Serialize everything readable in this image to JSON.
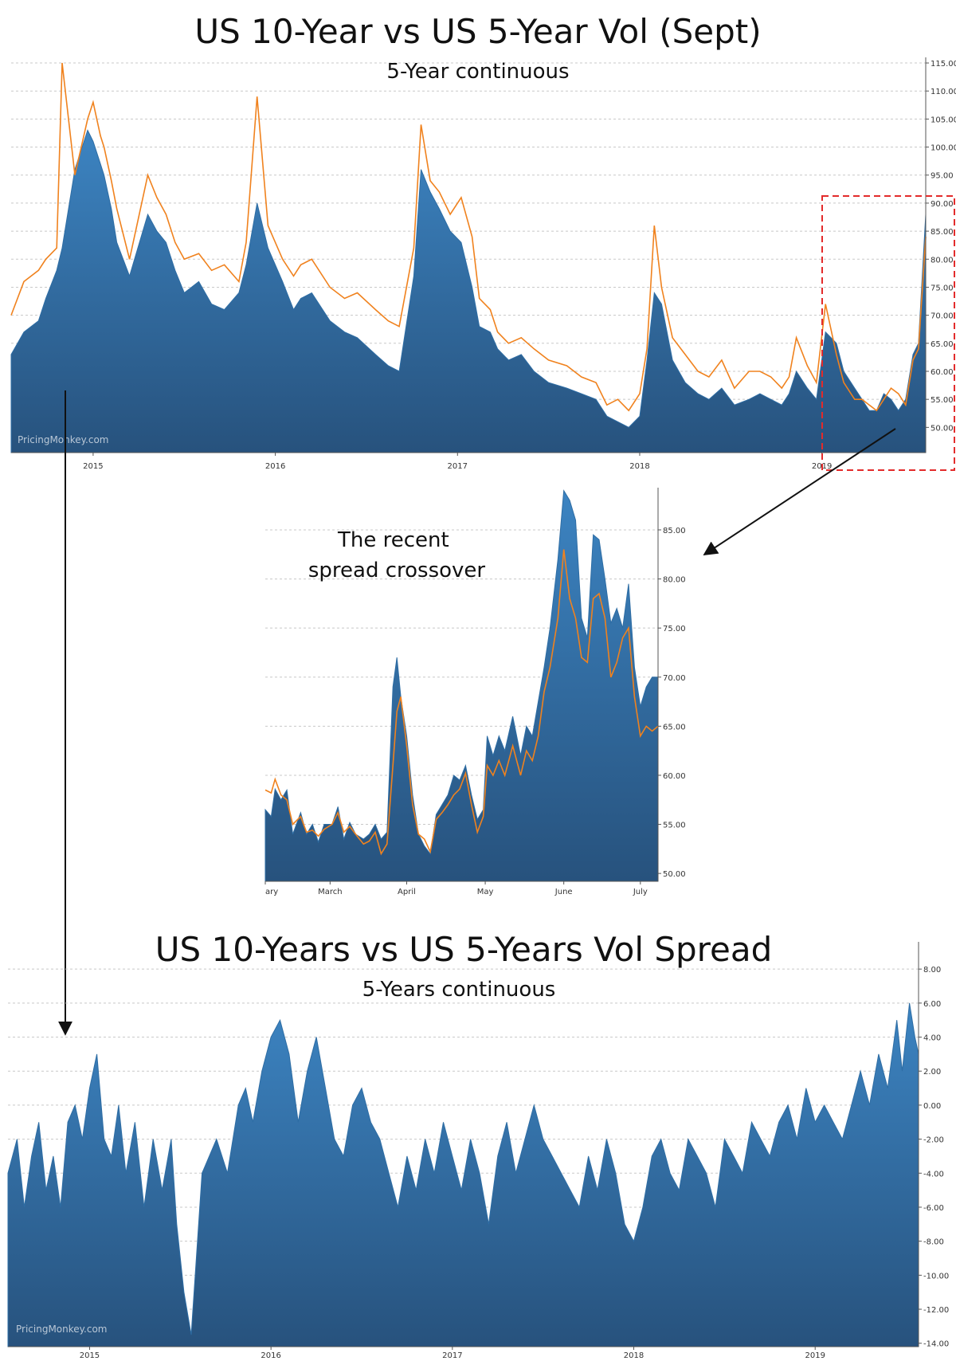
{
  "chart_data": [
    {
      "id": "top",
      "type": "area",
      "title": "US 10-Year vs US 5-Year Vol (Sept)",
      "subtitle": "5-Year continuous",
      "watermark": "PricingMonkey.com",
      "x_tick_labels": [
        "2015",
        "2016",
        "2017",
        "2018",
        "2019"
      ],
      "x_range": [
        2014.55,
        2019.57
      ],
      "x_ticks": [
        2015.0,
        2016.0,
        2017.0,
        2018.0,
        2019.0
      ],
      "ylim": [
        45.5,
        116
      ],
      "y_ticks": [
        50,
        55,
        60,
        65,
        70,
        75,
        80,
        85,
        90,
        95,
        100,
        105,
        110,
        115
      ],
      "y_tick_labels": [
        "50.00",
        "55.00",
        "60.00",
        "65.00",
        "70.00",
        "75.00",
        "80.00",
        "85.00",
        "90.00",
        "95.00",
        "100.00",
        "105.00",
        "110.00",
        "115.00"
      ],
      "grid": true,
      "series": [
        {
          "style": "area",
          "color": "#2e6da4",
          "x": [
            2014.55,
            2014.62,
            2014.7,
            2014.74,
            2014.8,
            2014.83,
            2014.9,
            2014.97,
            2015.0,
            2015.04,
            2015.06,
            2015.1,
            2015.13,
            2015.2,
            2015.3,
            2015.35,
            2015.4,
            2015.45,
            2015.5,
            2015.58,
            2015.65,
            2015.72,
            2015.8,
            2015.84,
            2015.9,
            2015.96,
            2016.04,
            2016.1,
            2016.14,
            2016.2,
            2016.3,
            2016.38,
            2016.45,
            2016.55,
            2016.62,
            2016.68,
            2016.76,
            2016.8,
            2016.85,
            2016.9,
            2016.96,
            2017.02,
            2017.08,
            2017.12,
            2017.18,
            2017.22,
            2017.28,
            2017.35,
            2017.42,
            2017.5,
            2017.6,
            2017.68,
            2017.76,
            2017.82,
            2017.88,
            2017.94,
            2018.0,
            2018.04,
            2018.08,
            2018.12,
            2018.18,
            2018.25,
            2018.32,
            2018.38,
            2018.45,
            2018.52,
            2018.6,
            2018.66,
            2018.72,
            2018.78,
            2018.82,
            2018.86,
            2018.92,
            2018.97,
            2019.02,
            2019.08,
            2019.12,
            2019.18,
            2019.22,
            2019.26,
            2019.3,
            2019.34,
            2019.38,
            2019.42,
            2019.46,
            2019.5,
            2019.53,
            2019.57
          ],
          "values": [
            63,
            67,
            69,
            73,
            78,
            82,
            96,
            103,
            101,
            97,
            95,
            89,
            83,
            77,
            88,
            85,
            83,
            78,
            74,
            76,
            72,
            71,
            74,
            79,
            90,
            82,
            76,
            71,
            73,
            74,
            69,
            67,
            66,
            63,
            61,
            60,
            77,
            96,
            92,
            89,
            85,
            83,
            75,
            68,
            67,
            64,
            62,
            63,
            60,
            58,
            57,
            56,
            55,
            52,
            51,
            50,
            52,
            62,
            74,
            72,
            62,
            58,
            56,
            55,
            57,
            54,
            55,
            56,
            55,
            54,
            56,
            60,
            57,
            55,
            67,
            65,
            60,
            57,
            55,
            53,
            53,
            56,
            55,
            53,
            55,
            63,
            65,
            88
          ]
        },
        {
          "style": "line",
          "color": "#f0821e",
          "x": [
            2014.55,
            2014.62,
            2014.7,
            2014.74,
            2014.8,
            2014.83,
            2014.9,
            2014.97,
            2015.0,
            2015.04,
            2015.06,
            2015.1,
            2015.13,
            2015.2,
            2015.3,
            2015.35,
            2015.4,
            2015.45,
            2015.5,
            2015.58,
            2015.65,
            2015.72,
            2015.8,
            2015.84,
            2015.9,
            2015.96,
            2016.04,
            2016.1,
            2016.14,
            2016.2,
            2016.3,
            2016.38,
            2016.45,
            2016.55,
            2016.62,
            2016.68,
            2016.76,
            2016.8,
            2016.85,
            2016.9,
            2016.96,
            2017.02,
            2017.08,
            2017.12,
            2017.18,
            2017.22,
            2017.28,
            2017.35,
            2017.42,
            2017.5,
            2017.6,
            2017.68,
            2017.76,
            2017.82,
            2017.88,
            2017.94,
            2018.0,
            2018.04,
            2018.08,
            2018.12,
            2018.18,
            2018.25,
            2018.32,
            2018.38,
            2018.45,
            2018.52,
            2018.6,
            2018.66,
            2018.72,
            2018.78,
            2018.82,
            2018.86,
            2018.92,
            2018.97,
            2019.02,
            2019.08,
            2019.12,
            2019.18,
            2019.22,
            2019.26,
            2019.3,
            2019.34,
            2019.38,
            2019.42,
            2019.46,
            2019.5,
            2019.53,
            2019.57
          ],
          "values": [
            70,
            76,
            78,
            80,
            82,
            115,
            95,
            105,
            108,
            102,
            100,
            94,
            89,
            80,
            95,
            91,
            88,
            83,
            80,
            81,
            78,
            79,
            76,
            83,
            109,
            86,
            80,
            77,
            79,
            80,
            75,
            73,
            74,
            71,
            69,
            68,
            82,
            104,
            94,
            92,
            88,
            91,
            84,
            73,
            71,
            67,
            65,
            66,
            64,
            62,
            61,
            59,
            58,
            54,
            55,
            53,
            56,
            64,
            86,
            75,
            66,
            63,
            60,
            59,
            62,
            57,
            60,
            60,
            59,
            57,
            59,
            66,
            61,
            58,
            72,
            63,
            58,
            55,
            55,
            54,
            53,
            55,
            57,
            56,
            54,
            62,
            64,
            84
          ]
        }
      ]
    },
    {
      "id": "zoom",
      "type": "area",
      "annotation": "The recent\nspread crossover",
      "x_tick_labels": [
        "ary",
        "March",
        "April",
        "May",
        "June",
        "July"
      ],
      "x_range": [
        0,
        200
      ],
      "x_ticks": [
        0,
        33,
        72,
        112,
        152,
        191
      ],
      "ylim": [
        49.2,
        89.3
      ],
      "y_ticks": [
        50,
        55,
        60,
        65,
        70,
        75,
        80,
        85
      ],
      "y_tick_labels": [
        "50.00",
        "55.00",
        "60.00",
        "65.00",
        "70.00",
        "75.00",
        "80.00",
        "85.00"
      ],
      "grid": true,
      "series": [
        {
          "style": "area",
          "color": "#2e6da4",
          "x": [
            0,
            3,
            5,
            8,
            11,
            14,
            18,
            21,
            24,
            27,
            30,
            34,
            37,
            40,
            43,
            46,
            50,
            53,
            56,
            59,
            62,
            65,
            67,
            69,
            72,
            75,
            78,
            81,
            84,
            87,
            90,
            93,
            96,
            99,
            102,
            105,
            108,
            111,
            113,
            116,
            119,
            122,
            126,
            130,
            133,
            136,
            139,
            142,
            145,
            149,
            152,
            155,
            158,
            161,
            164,
            167,
            170,
            173,
            176,
            179,
            182,
            185,
            188,
            191,
            194,
            197,
            200
          ],
          "values": [
            56.5,
            55.8,
            58.6,
            57.5,
            58.5,
            54,
            56.2,
            54,
            55,
            53.2,
            55,
            55,
            56.8,
            53.5,
            55.2,
            54,
            53.5,
            54,
            55,
            53.5,
            54.2,
            69,
            72,
            68,
            64,
            58,
            54,
            52.8,
            52,
            56,
            57,
            58,
            60,
            59.5,
            61,
            58,
            55.5,
            56.5,
            64,
            62,
            64,
            62.5,
            66,
            62,
            65,
            64,
            67.5,
            71,
            75,
            82,
            89,
            88,
            86,
            76,
            74,
            84.5,
            84,
            80,
            75.5,
            77,
            75,
            79.5,
            71,
            67,
            69,
            70,
            70
          ]
        },
        {
          "style": "line",
          "color": "#f0821e",
          "x": [
            0,
            3,
            5,
            8,
            11,
            14,
            18,
            21,
            24,
            27,
            30,
            34,
            37,
            40,
            43,
            46,
            50,
            53,
            56,
            59,
            62,
            65,
            67,
            69,
            72,
            75,
            78,
            81,
            84,
            87,
            90,
            93,
            96,
            99,
            102,
            105,
            108,
            111,
            113,
            116,
            119,
            122,
            126,
            130,
            133,
            136,
            139,
            142,
            145,
            149,
            152,
            155,
            158,
            161,
            164,
            167,
            170,
            173,
            176,
            179,
            182,
            185,
            188,
            191,
            194,
            197,
            200
          ],
          "values": [
            58.5,
            58.2,
            59.6,
            58,
            57.5,
            55,
            55.8,
            54.2,
            54.4,
            53.8,
            54.5,
            55,
            56.2,
            54.2,
            54.8,
            54,
            53,
            53.3,
            54.2,
            52,
            53,
            61,
            66.5,
            68,
            63,
            57,
            54,
            53.5,
            52.2,
            55.5,
            56.2,
            57,
            58,
            58.6,
            60.2,
            57,
            54.2,
            55.8,
            61,
            60,
            61.5,
            60,
            63,
            60,
            62.5,
            61.5,
            64,
            68.5,
            71,
            76,
            83,
            78,
            76,
            72,
            71.5,
            78,
            78.5,
            76,
            70,
            71.5,
            74,
            75,
            68,
            64,
            65,
            64.5,
            65
          ]
        }
      ]
    },
    {
      "id": "bottom",
      "type": "area",
      "title": "US 10-Years vs US 5-Years Vol Spread",
      "subtitle": "5-Years continuous",
      "watermark": "PricingMonkey.com",
      "x_tick_labels": [
        "2015",
        "2016",
        "2017",
        "2018",
        "2019"
      ],
      "x_range": [
        2014.55,
        2019.57
      ],
      "x_ticks": [
        2015.0,
        2016.0,
        2017.0,
        2018.0,
        2019.0
      ],
      "ylim": [
        -14.2,
        9.6
      ],
      "y_ticks": [
        -14,
        -12,
        -10,
        -8,
        -6,
        -4,
        -2,
        0,
        2,
        4,
        6,
        8
      ],
      "y_tick_labels": [
        "-14.00",
        "-12.00",
        "-10.00",
        "-8.00",
        "-6.00",
        "-4.00",
        "-2.00",
        "0.00",
        "2.00",
        "4.00",
        "6.00",
        "8.00"
      ],
      "grid": true,
      "series": [
        {
          "style": "area",
          "color": "#2e6da4",
          "x": [
            2014.55,
            2014.6,
            2014.64,
            2014.68,
            2014.72,
            2014.76,
            2014.8,
            2014.84,
            2014.88,
            2014.92,
            2014.96,
            2015.0,
            2015.04,
            2015.08,
            2015.12,
            2015.16,
            2015.2,
            2015.25,
            2015.3,
            2015.35,
            2015.4,
            2015.45,
            2015.48,
            2015.52,
            2015.56,
            2015.62,
            2015.7,
            2015.76,
            2015.82,
            2015.86,
            2015.9,
            2015.95,
            2016.0,
            2016.05,
            2016.1,
            2016.15,
            2016.2,
            2016.25,
            2016.3,
            2016.35,
            2016.4,
            2016.45,
            2016.5,
            2016.55,
            2016.6,
            2016.65,
            2016.7,
            2016.75,
            2016.8,
            2016.85,
            2016.9,
            2016.95,
            2017.0,
            2017.05,
            2017.1,
            2017.15,
            2017.2,
            2017.25,
            2017.3,
            2017.35,
            2017.4,
            2017.45,
            2017.5,
            2017.55,
            2017.6,
            2017.65,
            2017.7,
            2017.75,
            2017.8,
            2017.85,
            2017.9,
            2017.95,
            2018.0,
            2018.05,
            2018.1,
            2018.15,
            2018.2,
            2018.25,
            2018.3,
            2018.35,
            2018.4,
            2018.45,
            2018.5,
            2018.55,
            2018.6,
            2018.65,
            2018.7,
            2018.75,
            2018.8,
            2018.85,
            2018.9,
            2018.95,
            2019.0,
            2019.05,
            2019.1,
            2019.15,
            2019.2,
            2019.25,
            2019.3,
            2019.35,
            2019.4,
            2019.45,
            2019.48,
            2019.52,
            2019.55,
            2019.57
          ],
          "values": [
            -4,
            -2,
            -6,
            -3,
            -1,
            -5,
            -3,
            -6,
            -1,
            0,
            -2,
            1,
            3,
            -2,
            -3,
            0,
            -4,
            -1,
            -6,
            -2,
            -5,
            -2,
            -7,
            -11,
            -13.5,
            -4,
            -2,
            -4,
            0,
            1,
            -1,
            2,
            4,
            5,
            3,
            -1,
            2,
            4,
            1,
            -2,
            -3,
            0,
            1,
            -1,
            -2,
            -4,
            -6,
            -3,
            -5,
            -2,
            -4,
            -1,
            -3,
            -5,
            -2,
            -4,
            -7,
            -3,
            -1,
            -4,
            -2,
            0,
            -2,
            -3,
            -4,
            -5,
            -6,
            -3,
            -5,
            -2,
            -4,
            -7,
            -8,
            -6,
            -3,
            -2,
            -4,
            -5,
            -2,
            -3,
            -4,
            -6,
            -2,
            -3,
            -4,
            -1,
            -2,
            -3,
            -1,
            0,
            -2,
            1,
            -1,
            0,
            -1,
            -2,
            0,
            2,
            0,
            3,
            1,
            5,
            2,
            6,
            4,
            3
          ]
        }
      ]
    }
  ]
}
